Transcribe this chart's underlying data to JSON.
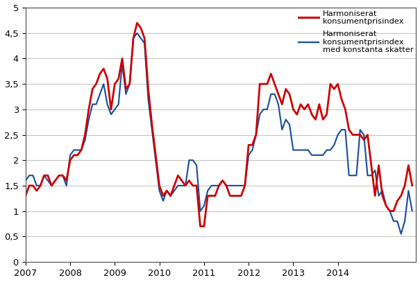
{
  "color1": "#cc0000",
  "color2": "#1a4f9c",
  "ylim": [
    0,
    5
  ],
  "yticks": [
    0,
    0.5,
    1,
    1.5,
    2,
    2.5,
    3,
    3.5,
    4,
    4.5,
    5
  ],
  "ytick_labels": [
    "0",
    "0,5",
    "1",
    "1,5",
    "2",
    "2,5",
    "3",
    "3,5",
    "4",
    "4,5",
    "5"
  ],
  "xtick_labels": [
    "2007",
    "2008",
    "2009",
    "2010",
    "2011",
    "2012",
    "2013",
    "2014"
  ],
  "hicp": [
    1.3,
    1.5,
    1.5,
    1.4,
    1.5,
    1.7,
    1.7,
    1.5,
    1.6,
    1.7,
    1.7,
    1.6,
    2.0,
    2.1,
    2.1,
    2.2,
    2.5,
    3.0,
    3.4,
    3.5,
    3.7,
    3.8,
    3.6,
    3.0,
    3.5,
    3.6,
    4.0,
    3.4,
    3.5,
    4.4,
    4.7,
    4.6,
    4.4,
    3.4,
    2.7,
    2.1,
    1.5,
    1.3,
    1.4,
    1.3,
    1.5,
    1.7,
    1.6,
    1.5,
    1.6,
    1.5,
    1.5,
    0.7,
    0.7,
    1.3,
    1.3,
    1.3,
    1.5,
    1.6,
    1.5,
    1.3,
    1.3,
    1.3,
    1.3,
    1.5,
    2.3,
    2.3,
    2.5,
    3.5,
    3.5,
    3.5,
    3.7,
    3.5,
    3.3,
    3.1,
    3.4,
    3.3,
    3.0,
    2.9,
    3.1,
    3.0,
    3.1,
    2.9,
    2.8,
    3.1,
    2.8,
    2.9,
    3.5,
    3.4,
    3.5,
    3.2,
    3.0,
    2.6,
    2.5,
    2.5,
    2.5,
    2.4,
    2.5,
    1.9,
    1.3,
    1.9,
    1.3,
    1.1,
    1.0,
    1.0,
    1.2,
    1.3,
    1.5,
    1.9,
    1.5
  ],
  "hicp_ct": [
    1.6,
    1.7,
    1.7,
    1.5,
    1.5,
    1.7,
    1.6,
    1.5,
    1.6,
    1.7,
    1.7,
    1.5,
    2.1,
    2.2,
    2.2,
    2.2,
    2.4,
    2.8,
    3.1,
    3.1,
    3.3,
    3.5,
    3.1,
    2.9,
    3.0,
    3.1,
    3.9,
    3.3,
    3.5,
    4.4,
    4.5,
    4.4,
    4.3,
    3.2,
    2.6,
    2.0,
    1.4,
    1.2,
    1.4,
    1.3,
    1.4,
    1.5,
    1.5,
    1.5,
    2.0,
    2.0,
    1.9,
    1.0,
    1.1,
    1.4,
    1.5,
    1.5,
    1.5,
    1.6,
    1.5,
    1.5,
    1.5,
    1.5,
    1.5,
    1.5,
    2.1,
    2.2,
    2.5,
    2.9,
    3.0,
    3.0,
    3.3,
    3.3,
    3.1,
    2.6,
    2.8,
    2.7,
    2.2,
    2.2,
    2.2,
    2.2,
    2.2,
    2.1,
    2.1,
    2.1,
    2.1,
    2.2,
    2.2,
    2.3,
    2.5,
    2.6,
    2.6,
    1.7,
    1.7,
    1.7,
    2.6,
    2.5,
    1.7,
    1.7,
    1.8,
    1.3,
    1.4,
    1.1,
    1.0,
    0.8,
    0.8,
    0.55,
    0.8,
    1.4,
    1.0
  ]
}
